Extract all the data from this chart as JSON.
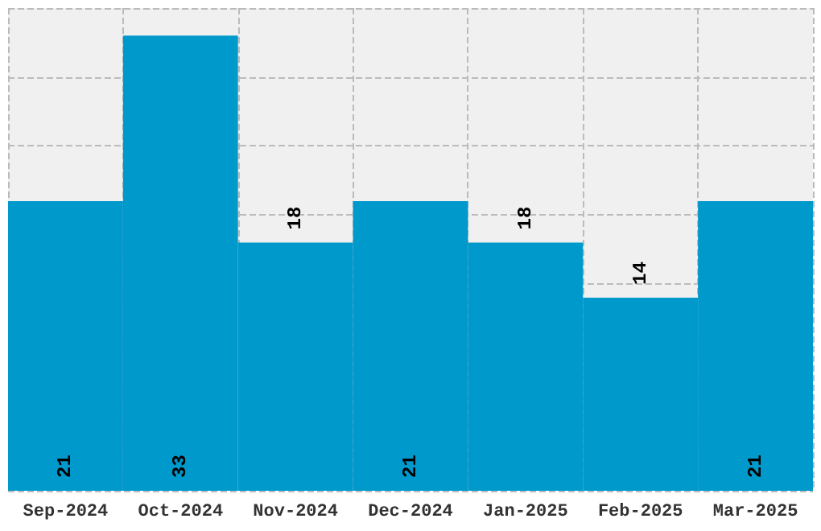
{
  "chart_data": {
    "type": "bar",
    "categories": [
      "Sep-2024",
      "Oct-2024",
      "Nov-2024",
      "Dec-2024",
      "Jan-2025",
      "Feb-2025",
      "Mar-2025"
    ],
    "values": [
      21,
      33,
      18,
      21,
      18,
      14,
      21
    ],
    "color": "#0099cc",
    "data_labels": true,
    "grid": true,
    "tick_labels": "x"
  }
}
